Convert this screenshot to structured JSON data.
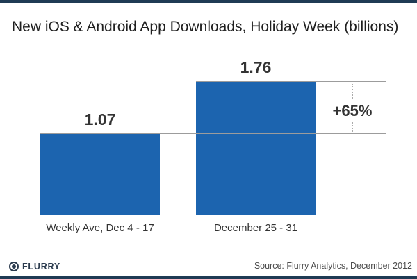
{
  "title": "New iOS & Android App Downloads, Holiday Week (billions)",
  "chart_data": {
    "type": "bar",
    "title": "New iOS & Android App Downloads, Holiday Week (billions)",
    "categories": [
      "Weekly Ave, Dec 4 - 17",
      "December 25 - 31"
    ],
    "values": [
      1.07,
      1.76
    ],
    "value_labels": [
      "1.07",
      "1.76"
    ],
    "delta_label": "+65%",
    "unit": "billions",
    "xlabel": "",
    "ylabel": "",
    "ylim": [
      0,
      2.2
    ],
    "grid": "reference lines at each bar top extending right, dotted connector with percent change",
    "legend": "none",
    "bar_color": "#1c64af"
  },
  "colors": {
    "accent_navy": "#1f3b54",
    "bar_blue": "#1c64af",
    "gridline_gray": "#9c9c9c",
    "text_dark": "#333333"
  },
  "footer": {
    "logo_text": "FLURRY",
    "source": "Source: Flurry Analytics, December 2012"
  }
}
